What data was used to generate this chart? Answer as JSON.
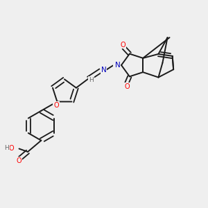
{
  "bg_color": "#efefef",
  "bond_color": "#1a1a1a",
  "atom_colors": {
    "O": "#ff0000",
    "N": "#0000bb",
    "H": "#666666",
    "C": "#1a1a1a"
  }
}
